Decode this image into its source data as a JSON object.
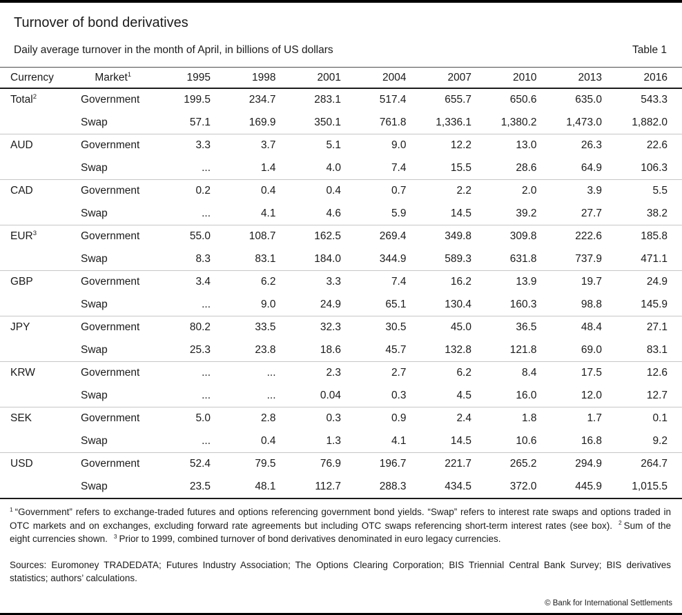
{
  "page": {
    "title": "Turnover of bond derivatives",
    "subtitle": "Daily average turnover in the month of April, in billions of US dollars",
    "table_label": "Table 1"
  },
  "table": {
    "col_headers": {
      "currency": "Currency",
      "market": {
        "text": "Market",
        "sup": "1"
      },
      "years": [
        "1995",
        "1998",
        "2001",
        "2004",
        "2007",
        "2010",
        "2013",
        "2016"
      ]
    },
    "groups": [
      {
        "currency": "Total",
        "sup": "2",
        "rows": [
          {
            "market": "Government",
            "values": [
              "199.5",
              "234.7",
              "283.1",
              "517.4",
              "655.7",
              "650.6",
              "635.0",
              "543.3"
            ]
          },
          {
            "market": "Swap",
            "values": [
              "57.1",
              "169.9",
              "350.1",
              "761.8",
              "1,336.1",
              "1,380.2",
              "1,473.0",
              "1,882.0"
            ]
          }
        ]
      },
      {
        "currency": "AUD",
        "sup": "",
        "rows": [
          {
            "market": "Government",
            "values": [
              "3.3",
              "3.7",
              "5.1",
              "9.0",
              "12.2",
              "13.0",
              "26.3",
              "22.6"
            ]
          },
          {
            "market": "Swap",
            "values": [
              "...",
              "1.4",
              "4.0",
              "7.4",
              "15.5",
              "28.6",
              "64.9",
              "106.3"
            ]
          }
        ]
      },
      {
        "currency": "CAD",
        "sup": "",
        "rows": [
          {
            "market": "Government",
            "values": [
              "0.2",
              "0.4",
              "0.4",
              "0.7",
              "2.2",
              "2.0",
              "3.9",
              "5.5"
            ]
          },
          {
            "market": "Swap",
            "values": [
              "...",
              "4.1",
              "4.6",
              "5.9",
              "14.5",
              "39.2",
              "27.7",
              "38.2"
            ]
          }
        ]
      },
      {
        "currency": "EUR",
        "sup": "3",
        "rows": [
          {
            "market": "Government",
            "values": [
              "55.0",
              "108.7",
              "162.5",
              "269.4",
              "349.8",
              "309.8",
              "222.6",
              "185.8"
            ]
          },
          {
            "market": "Swap",
            "values": [
              "8.3",
              "83.1",
              "184.0",
              "344.9",
              "589.3",
              "631.8",
              "737.9",
              "471.1"
            ]
          }
        ]
      },
      {
        "currency": "GBP",
        "sup": "",
        "rows": [
          {
            "market": "Government",
            "values": [
              "3.4",
              "6.2",
              "3.3",
              "7.4",
              "16.2",
              "13.9",
              "19.7",
              "24.9"
            ]
          },
          {
            "market": "Swap",
            "values": [
              "...",
              "9.0",
              "24.9",
              "65.1",
              "130.4",
              "160.3",
              "98.8",
              "145.9"
            ]
          }
        ]
      },
      {
        "currency": "JPY",
        "sup": "",
        "rows": [
          {
            "market": "Government",
            "values": [
              "80.2",
              "33.5",
              "32.3",
              "30.5",
              "45.0",
              "36.5",
              "48.4",
              "27.1"
            ]
          },
          {
            "market": "Swap",
            "values": [
              "25.3",
              "23.8",
              "18.6",
              "45.7",
              "132.8",
              "121.8",
              "69.0",
              "83.1"
            ]
          }
        ]
      },
      {
        "currency": "KRW",
        "sup": "",
        "rows": [
          {
            "market": "Government",
            "values": [
              "...",
              "...",
              "2.3",
              "2.7",
              "6.2",
              "8.4",
              "17.5",
              "12.6"
            ]
          },
          {
            "market": "Swap",
            "values": [
              "...",
              "...",
              "0.04",
              "0.3",
              "4.5",
              "16.0",
              "12.0",
              "12.7"
            ]
          }
        ]
      },
      {
        "currency": "SEK",
        "sup": "",
        "rows": [
          {
            "market": "Government",
            "values": [
              "5.0",
              "2.8",
              "0.3",
              "0.9",
              "2.4",
              "1.8",
              "1.7",
              "0.1"
            ]
          },
          {
            "market": "Swap",
            "values": [
              "...",
              "0.4",
              "1.3",
              "4.1",
              "14.5",
              "10.6",
              "16.8",
              "9.2"
            ]
          }
        ]
      },
      {
        "currency": "USD",
        "sup": "",
        "rows": [
          {
            "market": "Government",
            "values": [
              "52.4",
              "79.5",
              "76.9",
              "196.7",
              "221.7",
              "265.2",
              "294.9",
              "264.7"
            ]
          },
          {
            "market": "Swap",
            "values": [
              "23.5",
              "48.1",
              "112.7",
              "288.3",
              "434.5",
              "372.0",
              "445.9",
              "1,015.5"
            ]
          }
        ]
      }
    ]
  },
  "footnotes": [
    {
      "sup": "1",
      "text": "“Government” refers to exchange-traded futures and options referencing government bond yields. “Swap” refers to interest rate swaps and options traded in OTC markets and on exchanges, excluding forward rate agreements but including OTC swaps referencing short-term interest rates (see box)."
    },
    {
      "sup": "2",
      "text": "Sum of the eight currencies shown."
    },
    {
      "sup": "3",
      "text": "Prior to 1999, combined turnover of bond derivatives denominated in euro legacy currencies."
    }
  ],
  "sources": {
    "text": "Sources: Euromoney TRADEDATA; Futures Industry Association; The Options Clearing Corporation; BIS Triennial Central Bank Survey; BIS derivatives statistics; authors’ calculations."
  },
  "copyright": {
    "text": "© Bank for International Settlements"
  }
}
